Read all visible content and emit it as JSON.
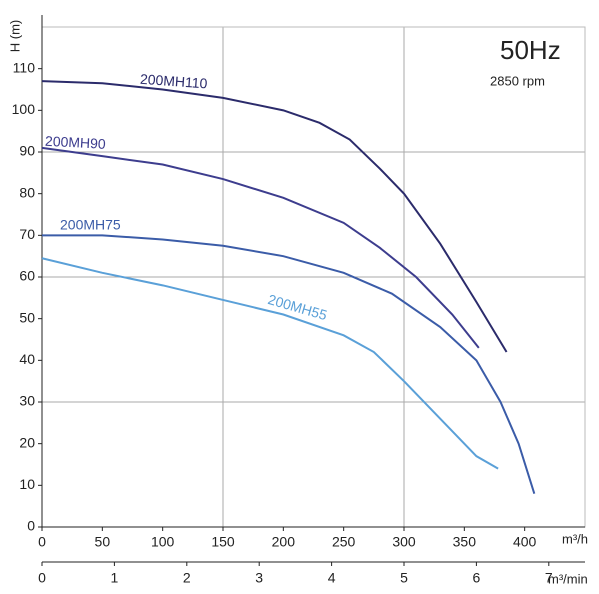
{
  "chart_data": {
    "type": "line",
    "title": "50Hz",
    "subtitle": "2850 rpm",
    "y_label": "H (m)",
    "x_label": "m³/h",
    "x2_label": "m³/min",
    "xlim": [
      0,
      450
    ],
    "xticks": [
      0,
      50,
      100,
      150,
      200,
      250,
      300,
      350,
      400
    ],
    "x2lim": [
      0,
      7.5
    ],
    "x2ticks": [
      0,
      1,
      2,
      3,
      4,
      5,
      6,
      7
    ],
    "ylim": [
      0,
      120
    ],
    "yticks": [
      0,
      10,
      20,
      30,
      40,
      50,
      60,
      70,
      80,
      90,
      100,
      110
    ],
    "xgrid": [
      150,
      300
    ],
    "ygrid": [
      30,
      60,
      90
    ],
    "series": [
      {
        "name": "200MH110",
        "color": "#2b2b6b",
        "x": [
          0,
          50,
          100,
          150,
          200,
          230,
          255,
          280,
          300,
          330,
          360,
          385
        ],
        "values": [
          107,
          106.5,
          105,
          103,
          100,
          97,
          93,
          86,
          80,
          68,
          54,
          42
        ]
      },
      {
        "name": "200MH90",
        "color": "#3d3d8e",
        "x": [
          0,
          50,
          100,
          150,
          200,
          250,
          280,
          310,
          340,
          362
        ],
        "values": [
          91,
          89,
          87,
          83.5,
          79,
          73,
          67,
          60,
          51,
          43
        ]
      },
      {
        "name": "200MH75",
        "color": "#3b5ca8",
        "x": [
          0,
          50,
          100,
          150,
          200,
          250,
          290,
          330,
          360,
          380,
          395,
          408
        ],
        "values": [
          70,
          70,
          69,
          67.5,
          65,
          61,
          56,
          48,
          40,
          30,
          20,
          8
        ]
      },
      {
        "name": "200MH55",
        "color": "#5aa0d8",
        "x": [
          0,
          50,
          100,
          150,
          200,
          250,
          275,
          300,
          330,
          360,
          378
        ],
        "values": [
          64.5,
          61,
          58,
          54.5,
          51,
          46,
          42,
          35,
          26,
          17,
          14
        ]
      }
    ]
  }
}
